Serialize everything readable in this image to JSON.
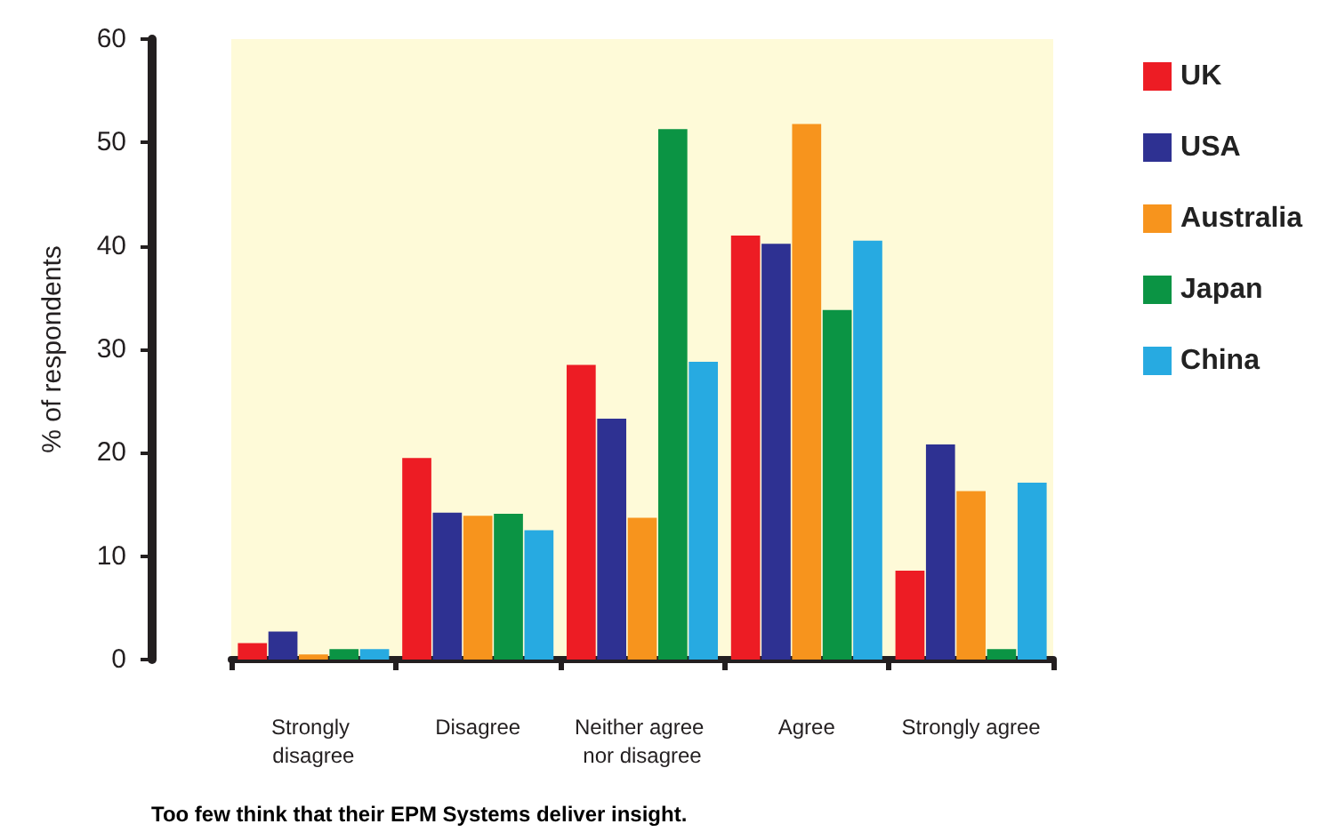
{
  "chart_data": {
    "type": "bar",
    "ylabel": "% of respondents",
    "categories": [
      "Strongly disagree",
      "Disagree",
      "Neither agree nor disagree",
      "Agree",
      "Strongly agree"
    ],
    "series": [
      {
        "name": "UK",
        "color": "#ed1c24",
        "values": [
          1.6,
          19.5,
          28.5,
          41,
          8.6
        ]
      },
      {
        "name": "USA",
        "color": "#2e3192",
        "values": [
          2.7,
          14.2,
          23.3,
          40.2,
          20.8
        ]
      },
      {
        "name": "Australia",
        "color": "#f7941d",
        "values": [
          0.5,
          13.9,
          13.7,
          51.8,
          16.3
        ]
      },
      {
        "name": "Japan",
        "color": "#0b9444",
        "values": [
          1,
          14.1,
          51.3,
          33.8,
          1
        ]
      },
      {
        "name": "China",
        "color": "#27aae1",
        "values": [
          1,
          12.5,
          28.8,
          40.5,
          17.1
        ]
      }
    ],
    "ylim": [
      0,
      60
    ],
    "yticks": [
      0,
      10,
      20,
      30,
      40,
      50,
      60
    ],
    "grid": false,
    "legend": "right",
    "annotations": [
      "Too few think that their EPM Systems deliver insight."
    ]
  }
}
